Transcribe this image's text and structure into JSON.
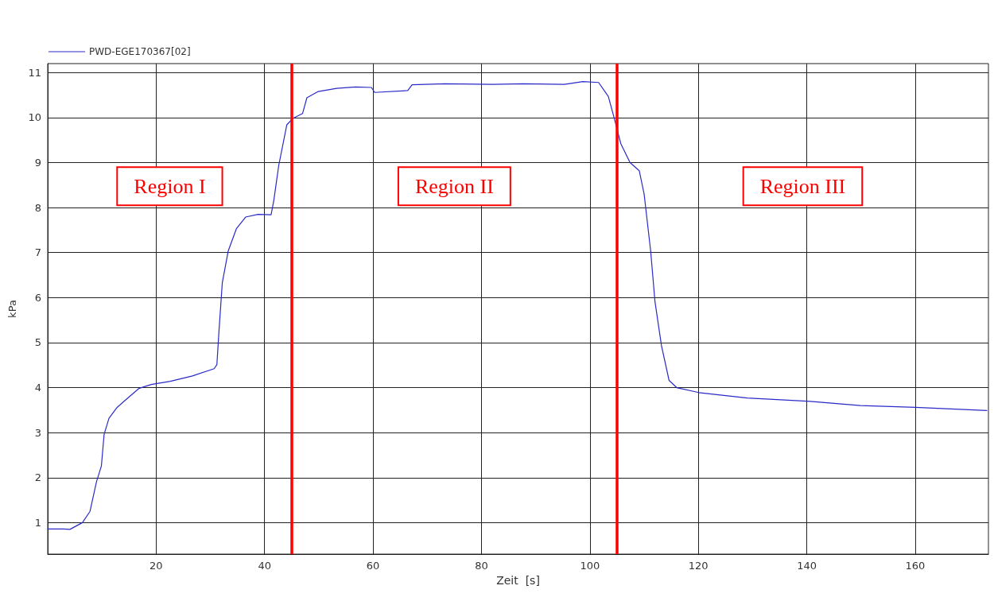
{
  "chart_data": {
    "type": "line",
    "xlabel": "Zeit  [s]",
    "ylabel": "kPa",
    "xlim": [
      0,
      173.5
    ],
    "ylim": [
      0.3,
      11.2
    ],
    "xticks": [
      20,
      40,
      60,
      80,
      100,
      120,
      140,
      160
    ],
    "yticks": [
      1,
      2,
      3,
      4,
      5,
      6,
      7,
      8,
      9,
      10,
      11
    ],
    "grid": true,
    "legend": "top left",
    "marker": "none",
    "line_style": "solid",
    "series": [
      {
        "name": "PWD-EGE170367[02]",
        "color": "#2a2ac8",
        "x": [
          0,
          2.9,
          4.1,
          6.4,
          7.8,
          9.0,
          9.9,
          10.4,
          11.3,
          12.8,
          14.5,
          16.8,
          19.1,
          22.6,
          26.7,
          30.7,
          31.2,
          31.6,
          32.2,
          33.3,
          34.8,
          36.5,
          38.8,
          41.2,
          41.7,
          42.6,
          44.1,
          45.2,
          47,
          47.8,
          49.9,
          53.3,
          56.8,
          59.7,
          60.3,
          66.4,
          67.2,
          73.3,
          82,
          87.7,
          95.3,
          98.7,
          101.6,
          103.4,
          104.5,
          105.7,
          107.4,
          109.1,
          110,
          111.2,
          112,
          113.2,
          114.6,
          116,
          120.1,
          129,
          140,
          149.9,
          160,
          173.2
        ],
        "values": [
          0.86,
          0.86,
          0.85,
          1.0,
          1.25,
          1.91,
          2.26,
          2.96,
          3.32,
          3.56,
          3.74,
          3.98,
          4.07,
          4.14,
          4.26,
          4.42,
          4.51,
          5.28,
          6.33,
          7.04,
          7.53,
          7.79,
          7.85,
          7.84,
          8.16,
          8.93,
          9.84,
          9.98,
          10.09,
          10.44,
          10.58,
          10.65,
          10.68,
          10.67,
          10.56,
          10.6,
          10.73,
          10.75,
          10.74,
          10.75,
          10.74,
          10.8,
          10.78,
          10.47,
          9.98,
          9.42,
          9.0,
          8.82,
          8.3,
          7.04,
          5.91,
          4.93,
          4.16,
          4.0,
          3.89,
          3.77,
          3.7,
          3.6,
          3.56,
          3.49
        ]
      }
    ],
    "ref_lines": [
      {
        "axis": "x",
        "value": 45,
        "color": "#ff0000"
      },
      {
        "axis": "x",
        "value": 105,
        "color": "#ff0000"
      }
    ],
    "annotations": [
      "Region I",
      "Region II",
      "Region III"
    ]
  }
}
